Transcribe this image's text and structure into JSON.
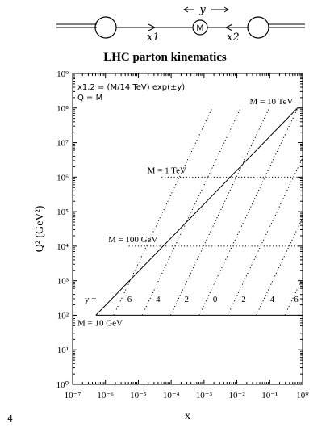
{
  "diagram": {
    "center_label": "M",
    "left_label": "x1",
    "right_label": "x2",
    "arrow_label": "y"
  },
  "page_number": "4",
  "chart_data": {
    "type": "line",
    "title": "LHC parton kinematics",
    "xlabel": "x",
    "ylabel": "Q² (GeV²)",
    "x_scale": "log",
    "y_scale": "log",
    "xlim": [
      1e-07,
      1
    ],
    "ylim": [
      1,
      1000000000.0
    ],
    "x_ticks": [
      {
        "value": 1e-07,
        "label": "10⁻⁷"
      },
      {
        "value": 1e-06,
        "label": "10⁻⁶"
      },
      {
        "value": 1e-05,
        "label": "10⁻⁵"
      },
      {
        "value": 0.0001,
        "label": "10⁻⁴"
      },
      {
        "value": 0.001,
        "label": "10⁻³"
      },
      {
        "value": 0.01,
        "label": "10⁻²"
      },
      {
        "value": 0.1,
        "label": "10⁻¹"
      },
      {
        "value": 1,
        "label": "10⁰"
      }
    ],
    "y_ticks": [
      {
        "value": 1,
        "label": "10⁰"
      },
      {
        "value": 10,
        "label": "10¹"
      },
      {
        "value": 100,
        "label": "10²"
      },
      {
        "value": 1000,
        "label": "10³"
      },
      {
        "value": 10000,
        "label": "10⁴"
      },
      {
        "value": 100000,
        "label": "10⁵"
      },
      {
        "value": 1000000,
        "label": "10⁶"
      },
      {
        "value": 10000000,
        "label": "10⁷"
      },
      {
        "value": 100000000,
        "label": "10⁸"
      },
      {
        "value": 1000000000,
        "label": "10⁹"
      }
    ],
    "annotations": [
      "x1,2 = (M/14 TeV) exp(±y)",
      "Q = M"
    ],
    "boundary": [
      {
        "x": 5.1e-07,
        "y": 100
      },
      {
        "x": 1,
        "y": 100
      },
      {
        "x": 1,
        "y": 100000000
      },
      {
        "x": 0.7,
        "y": 100000000
      },
      {
        "x": 5.1e-07,
        "y": 100
      }
    ],
    "mass_lines": [
      {
        "label": "M = 10 GeV",
        "Q2": 100,
        "x_min": 5.1e-07,
        "x_max": 1,
        "line": "solid"
      },
      {
        "label": "M = 100 GeV",
        "Q2": 10000,
        "x_min": 5.1e-06,
        "x_max": 1,
        "line": "dotted"
      },
      {
        "label": "M = 1 TeV",
        "Q2": 1000000,
        "x_min": 5.1e-05,
        "x_max": 1,
        "line": "dotted"
      },
      {
        "label": "M = 10 TeV",
        "Q2": 100000000,
        "x_min": 0.7,
        "x_max": 1,
        "line": "solid"
      }
    ],
    "rapidity_lines": [
      {
        "y": 6,
        "label": "6"
      },
      {
        "y": 4,
        "label": "4"
      },
      {
        "y": 2,
        "label": "2"
      },
      {
        "y": 0,
        "label": "0"
      },
      {
        "y": -2,
        "label": "2"
      },
      {
        "y": -4,
        "label": "4"
      },
      {
        "y": -6,
        "label": "6"
      }
    ],
    "rapidity_prefix": "y ="
  }
}
